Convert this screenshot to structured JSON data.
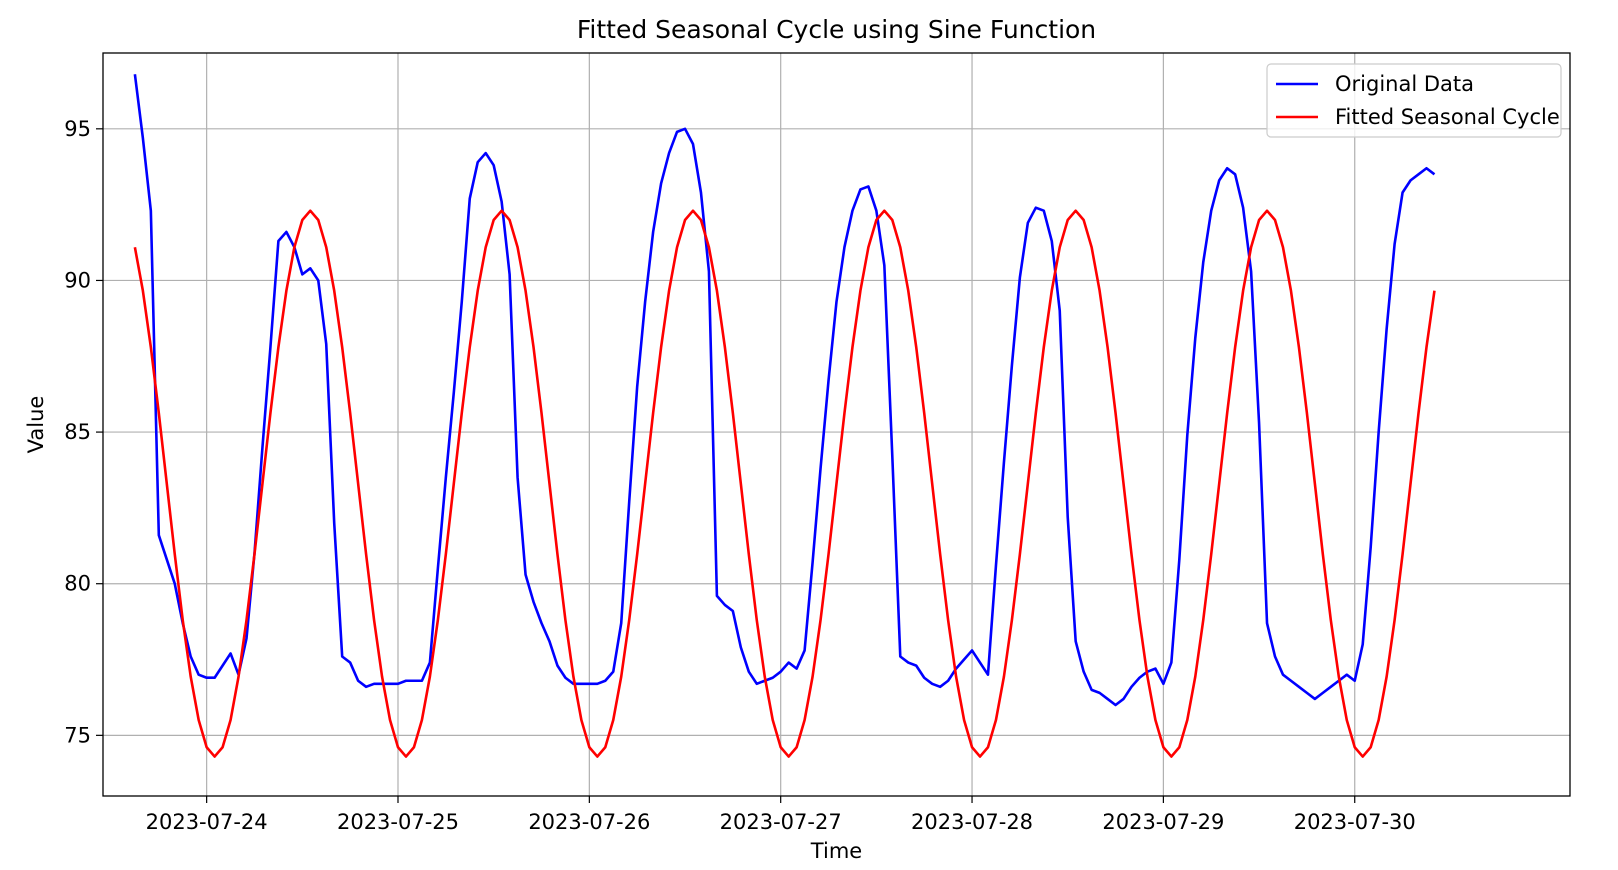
{
  "chart_data": {
    "type": "line",
    "title": "Fitted Seasonal Cycle using Sine Function",
    "xlabel": "Time",
    "ylabel": "Value",
    "x_start": "2023-07-23T15:00",
    "x_step_hours": 1,
    "xlim": [
      "2023-07-23T11:00",
      "2023-07-31T03:00"
    ],
    "ylim": [
      73.0,
      97.5
    ],
    "x_ticks": [
      "2023-07-24",
      "2023-07-25",
      "2023-07-26",
      "2023-07-27",
      "2023-07-28",
      "2023-07-29",
      "2023-07-30"
    ],
    "y_ticks": [
      75,
      80,
      85,
      90,
      95
    ],
    "grid": true,
    "legend": "top-right",
    "series": [
      {
        "name": "Original Data",
        "color": "#0000ff",
        "values": [
          96.8,
          94.7,
          92.3,
          81.6,
          80.8,
          80.0,
          78.7,
          77.6,
          77.0,
          76.9,
          76.9,
          77.3,
          77.7,
          77.0,
          78.2,
          81.0,
          84.5,
          87.8,
          91.3,
          91.6,
          91.1,
          90.2,
          90.4,
          90.0,
          87.9,
          82.0,
          77.6,
          77.4,
          76.8,
          76.6,
          76.7,
          76.7,
          76.7,
          76.7,
          76.8,
          76.8,
          76.8,
          77.4,
          80.5,
          83.5,
          86.3,
          89.3,
          92.7,
          93.9,
          94.2,
          93.8,
          92.6,
          90.2,
          83.5,
          80.3,
          79.4,
          78.7,
          78.1,
          77.3,
          76.9,
          76.7,
          76.7,
          76.7,
          76.7,
          76.8,
          77.1,
          78.7,
          82.7,
          86.5,
          89.3,
          91.6,
          93.2,
          94.2,
          94.9,
          95.0,
          94.5,
          92.9,
          90.3,
          79.6,
          79.3,
          79.1,
          77.9,
          77.1,
          76.7,
          76.8,
          76.9,
          77.1,
          77.4,
          77.2,
          77.8,
          80.7,
          83.8,
          86.7,
          89.3,
          91.1,
          92.3,
          93.0,
          93.1,
          92.3,
          90.5,
          84.2,
          77.6,
          77.4,
          77.3,
          76.9,
          76.7,
          76.6,
          76.8,
          77.2,
          77.5,
          77.8,
          77.4,
          77.0,
          80.6,
          84.0,
          87.2,
          90.1,
          91.9,
          92.4,
          92.3,
          91.3,
          89.0,
          82.2,
          78.1,
          77.1,
          76.5,
          76.4,
          76.2,
          76.0,
          76.2,
          76.6,
          76.9,
          77.1,
          77.2,
          76.7,
          77.4,
          80.8,
          84.9,
          88.1,
          90.6,
          92.3,
          93.3,
          93.7,
          93.5,
          92.4,
          90.3,
          85.3,
          78.7,
          77.6,
          77.0,
          76.8,
          76.6,
          76.4,
          76.2,
          76.4,
          76.6,
          76.8,
          77.0,
          76.8,
          78.0,
          81.2,
          85.0,
          88.4,
          91.2,
          92.9,
          93.3,
          93.5,
          93.7,
          93.5
        ]
      },
      {
        "name": "Fitted Seasonal Cycle",
        "color": "#ff0000",
        "model": "sine",
        "mean": 83.3,
        "amplitude": 9.0,
        "period_hours": 24,
        "peak_hour": 13
      }
    ]
  }
}
